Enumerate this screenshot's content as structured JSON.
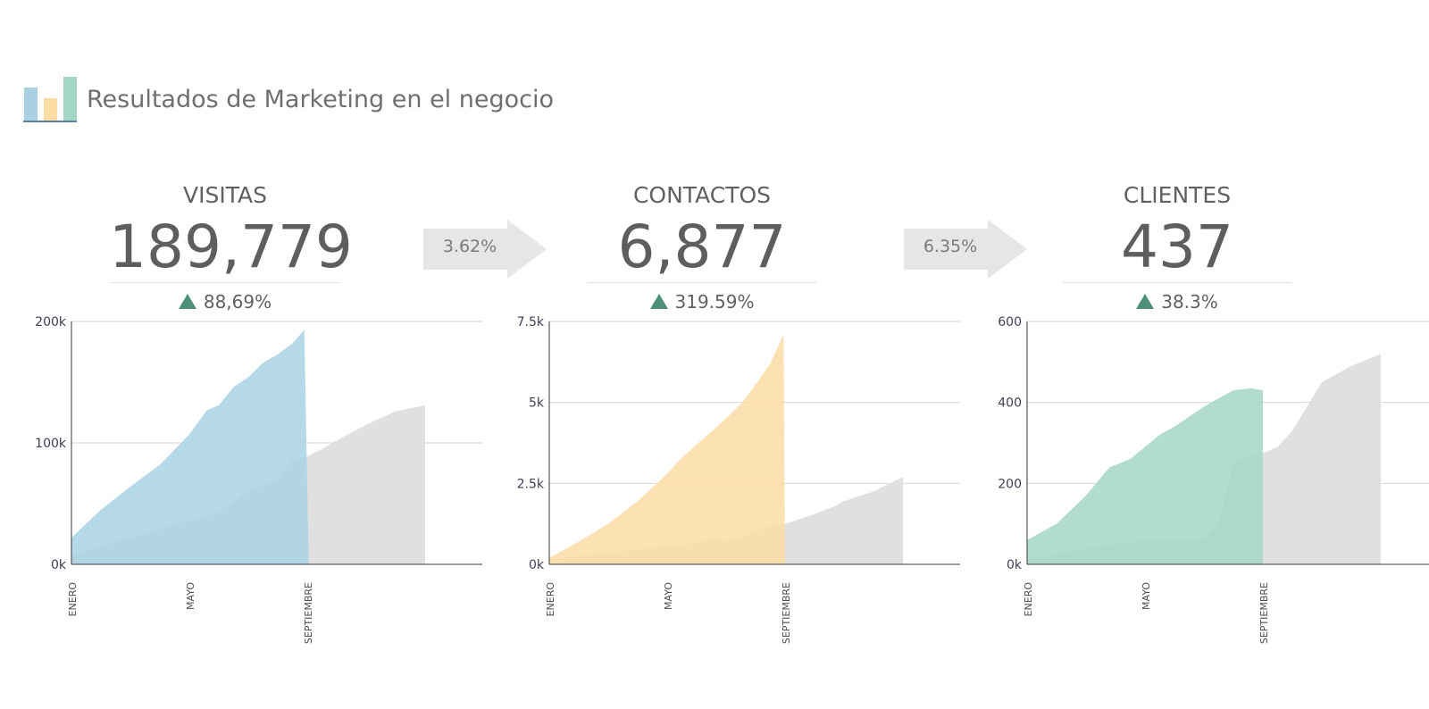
{
  "header": {
    "title": "Resultados de Marketing en el negocio",
    "logo_colors": [
      "#a8d2e2",
      "#fbdca5",
      "#a3d6c7"
    ]
  },
  "kpis": [
    {
      "label": "VISITAS",
      "value": "189,779",
      "change": "88,69%",
      "color": "#a8d2e2"
    },
    {
      "label": "CONTACTOS",
      "value": "6,877",
      "change": "319.59%",
      "color": "#fbdca5"
    },
    {
      "label": "CLIENTES",
      "value": "437",
      "change": "38.3%",
      "color": "#a3d6c7"
    }
  ],
  "conversions": [
    {
      "label": "3.62%"
    },
    {
      "label": "6.35%"
    }
  ],
  "colors": {
    "previous_year": "#e0e0e0",
    "change_up": "#4e8f78",
    "arrow": "#e6e6e6",
    "gridline": "#d6d6da",
    "axis": "#3a3a3a"
  },
  "chart_data": [
    {
      "type": "area",
      "ylim": [
        0,
        200000
      ],
      "yticks": [
        {
          "v": 0,
          "label": "0k"
        },
        {
          "v": 100000,
          "label": "100k"
        },
        {
          "v": 200000,
          "label": "200k"
        }
      ],
      "xlim": [
        0,
        12
      ],
      "xticks": [
        {
          "v": 0,
          "label": "ENERO"
        },
        {
          "v": 4,
          "label": "MAYO"
        },
        {
          "v": 8,
          "label": "SEPTIEMBRE"
        }
      ],
      "series": [
        {
          "color": "#e0e0e0",
          "x": [
            0,
            1,
            2,
            3,
            4,
            5,
            6,
            7,
            7.5,
            8,
            8.5,
            9,
            10,
            11,
            12
          ],
          "y": [
            8000,
            15000,
            22000,
            29000,
            36000,
            43000,
            60000,
            70000,
            86000,
            89000,
            95000,
            102000,
            115000,
            126000,
            131000
          ]
        },
        {
          "color": "#a8d2e2",
          "x": [
            0,
            1,
            2,
            3,
            4,
            4.6,
            5,
            5.5,
            6,
            6.5,
            7,
            7.5,
            7.9,
            8.05
          ],
          "y": [
            22000,
            45000,
            64000,
            82000,
            107000,
            127000,
            131000,
            146000,
            154000,
            166000,
            173000,
            182000,
            193000,
            0
          ]
        }
      ]
    },
    {
      "type": "area",
      "ylim": [
        0,
        7500
      ],
      "yticks": [
        {
          "v": 0,
          "label": "0k"
        },
        {
          "v": 2500,
          "label": "2.5k"
        },
        {
          "v": 5000,
          "label": "5k"
        },
        {
          "v": 7500,
          "label": "7.5k"
        }
      ],
      "xlim": [
        0,
        12
      ],
      "xticks": [
        {
          "v": 0,
          "label": "ENERO"
        },
        {
          "v": 4,
          "label": "MAYO"
        },
        {
          "v": 8,
          "label": "SEPTIEMBRE"
        }
      ],
      "series": [
        {
          "color": "#e0e0e0",
          "x": [
            0,
            1,
            2,
            3,
            4,
            5,
            5.5,
            6,
            7,
            7.5,
            8,
            9,
            9.7,
            10,
            11,
            12
          ],
          "y": [
            150,
            250,
            350,
            450,
            550,
            650,
            800,
            700,
            1000,
            1200,
            1250,
            1550,
            1800,
            1950,
            2250,
            2700
          ]
        },
        {
          "color": "#fbdca5",
          "x": [
            0,
            1,
            2,
            3,
            4,
            4.4,
            5,
            6,
            6.5,
            7,
            7.5,
            7.95,
            8.0
          ],
          "y": [
            200,
            700,
            1250,
            1950,
            2800,
            3200,
            3700,
            4500,
            4950,
            5550,
            6200,
            7100,
            0
          ]
        }
      ]
    },
    {
      "type": "area",
      "ylim": [
        0,
        600
      ],
      "yticks": [
        {
          "v": 0,
          "label": "0k"
        },
        {
          "v": 200,
          "label": "200"
        },
        {
          "v": 400,
          "label": "400"
        },
        {
          "v": 600,
          "label": "600"
        }
      ],
      "xlim": [
        0,
        12
      ],
      "xticks": [
        {
          "v": 0,
          "label": "ENERO"
        },
        {
          "v": 4,
          "label": "MAYO"
        },
        {
          "v": 8,
          "label": "SEPTIEMBRE"
        }
      ],
      "series": [
        {
          "color": "#e0e0e0",
          "x": [
            0,
            1,
            2,
            3,
            4,
            5,
            6,
            6.5,
            7,
            7.5,
            8,
            8.5,
            9,
            9.5,
            10,
            11,
            12
          ],
          "y": [
            10,
            25,
            40,
            50,
            60,
            60,
            60,
            100,
            250,
            265,
            275,
            290,
            330,
            390,
            450,
            490,
            520
          ]
        },
        {
          "color": "#a3d6c7",
          "x": [
            0,
            1,
            2,
            2.8,
            3.5,
            4,
            4.5,
            5,
            6,
            7,
            7.6,
            8,
            8.0
          ],
          "y": [
            60,
            100,
            170,
            240,
            260,
            290,
            320,
            340,
            390,
            430,
            435,
            430,
            0
          ]
        }
      ]
    }
  ]
}
